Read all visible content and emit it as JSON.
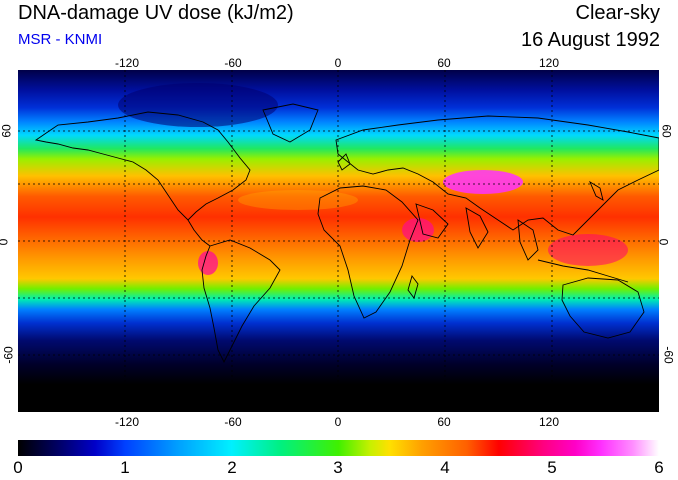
{
  "header": {
    "title": "DNA-damage UV dose (kJ/m2)",
    "source": "MSR - KNMI",
    "sky_condition": "Clear-sky",
    "date": "16 August 1992"
  },
  "map": {
    "longitude_ticks": [
      "-120",
      "-60",
      "0",
      "60",
      "120"
    ],
    "latitude_ticks": [
      "60",
      "0",
      "-60"
    ]
  },
  "colorbar": {
    "labels": [
      "0",
      "1",
      "2",
      "3",
      "4",
      "5",
      "6"
    ]
  }
}
